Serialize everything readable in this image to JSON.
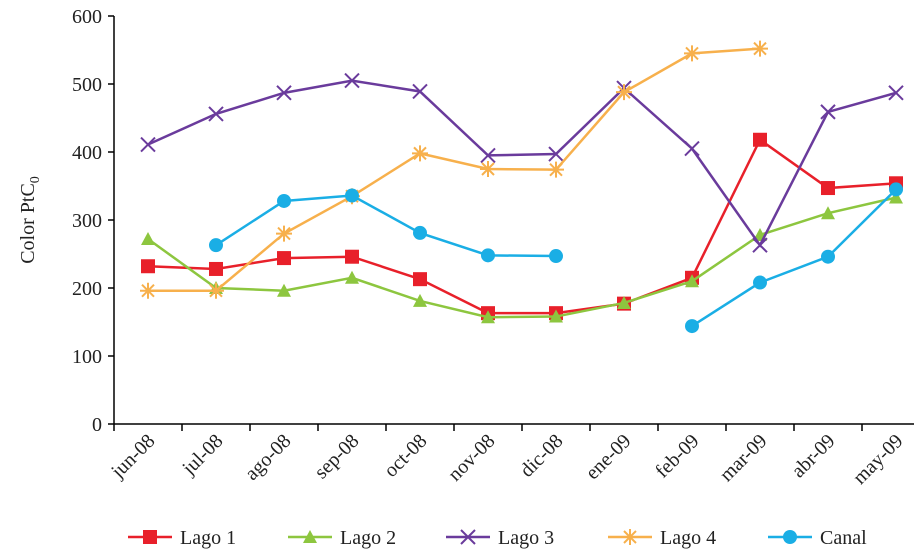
{
  "chart_data": {
    "type": "line",
    "y_label": {
      "text": "Color PtC",
      "subscript": "0"
    },
    "categories": [
      "jun-08",
      "jul-08",
      "ago-08",
      "sep-08",
      "oct-08",
      "nov-08",
      "dic-08",
      "ene-09",
      "feb-09",
      "mar-09",
      "abr-09",
      "may-09"
    ],
    "ylim": [
      0,
      600
    ],
    "yticks": [
      0,
      100,
      200,
      300,
      400,
      500,
      600
    ],
    "legend": "bottom",
    "series": [
      {
        "name": "Lago 1",
        "color": "#e8202a",
        "marker": "square",
        "values": [
          232,
          228,
          244,
          246,
          213,
          163,
          163,
          177,
          215,
          418,
          347,
          354
        ]
      },
      {
        "name": "Lago 2",
        "color": "#8dc63f",
        "marker": "triangle",
        "values": [
          272,
          200,
          196,
          215,
          181,
          157,
          158,
          178,
          210,
          278,
          310,
          333
        ]
      },
      {
        "name": "Lago 3",
        "color": "#6a3b9c",
        "marker": "x",
        "values": [
          411,
          456,
          487,
          505,
          489,
          395,
          397,
          494,
          405,
          263,
          459,
          487
        ]
      },
      {
        "name": "Lago 4",
        "color": "#f7b04c",
        "marker": "star",
        "values": [
          196,
          196,
          280,
          335,
          398,
          375,
          374,
          488,
          545,
          552,
          null,
          null
        ]
      },
      {
        "name": "Canal",
        "color": "#1aaee5",
        "marker": "circle",
        "values": [
          null,
          263,
          328,
          336,
          281,
          248,
          247,
          null,
          144,
          208,
          246,
          345
        ]
      }
    ]
  }
}
